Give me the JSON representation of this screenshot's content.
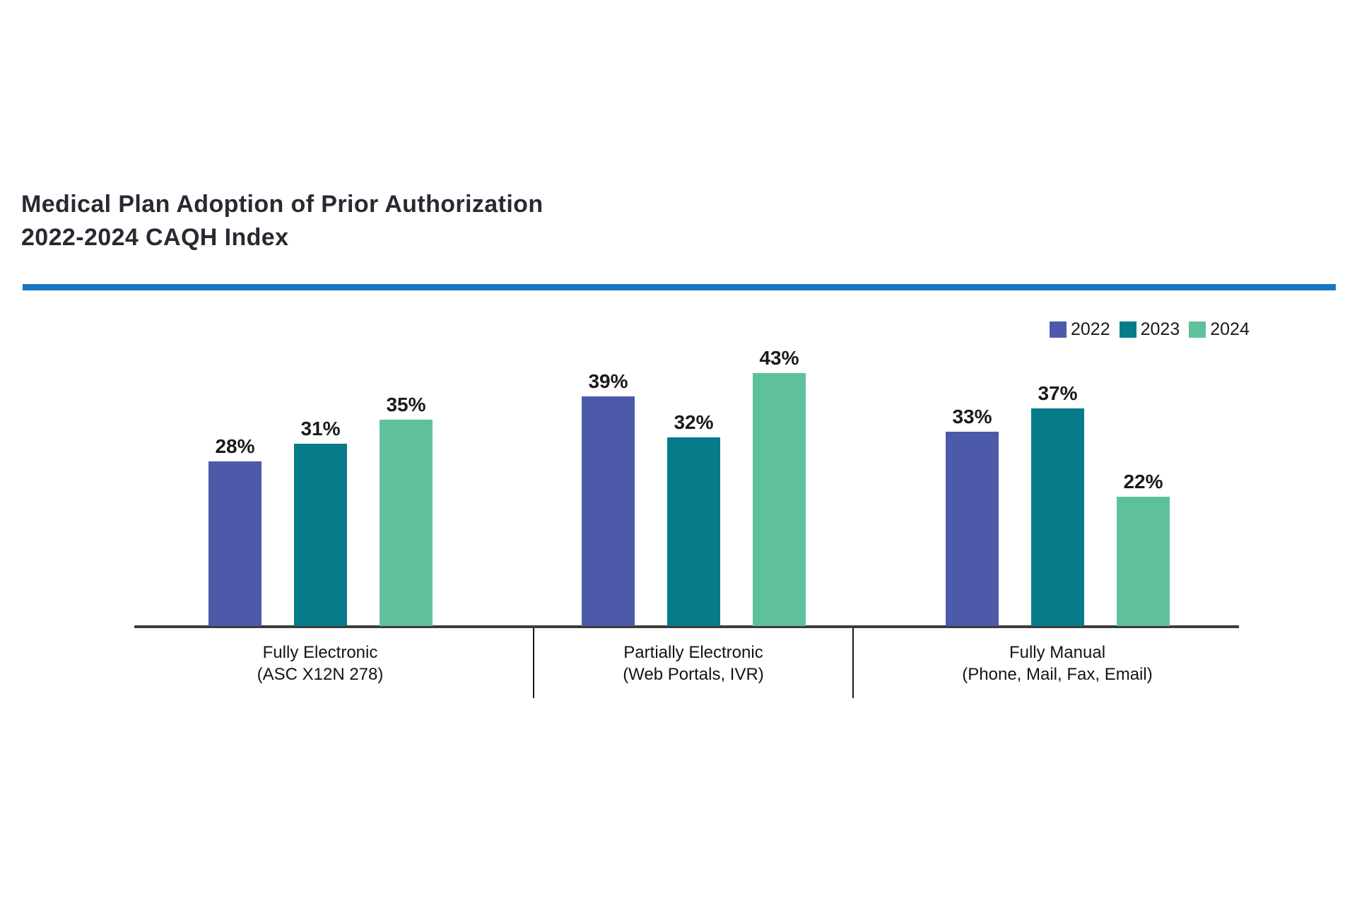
{
  "page": {
    "background": "#ffffff"
  },
  "header": {
    "title_line1": "Medical Plan Adoption of Prior Authorization",
    "title_line2": "2022-2024 CAQH Index",
    "rule_color": "#1a78c2"
  },
  "chart_data": {
    "type": "bar",
    "title": "Medical Plan Adoption of Prior Authorization 2022-2024 CAQH Index",
    "unit": "%",
    "categories": [
      "Fully Electronic\n(ASC X12N 278)",
      "Partially Electronic\n(Web Portals, IVR)",
      "Fully Manual\n(Phone, Mail, Fax, Email)"
    ],
    "series": [
      {
        "name": "2022",
        "color": "#4d5aa9",
        "values": [
          28,
          39,
          33
        ]
      },
      {
        "name": "2023",
        "color": "#077b8a",
        "values": [
          31,
          32,
          37
        ]
      },
      {
        "name": "2024",
        "color": "#5fc19b",
        "values": [
          35,
          43,
          22
        ]
      }
    ],
    "value_label_format": "{v}%",
    "ylim": [
      0,
      46
    ],
    "grid": false,
    "legend_position": "top-right",
    "axis_color": "#3c3c3c",
    "text_color": "#1a1a1a"
  }
}
